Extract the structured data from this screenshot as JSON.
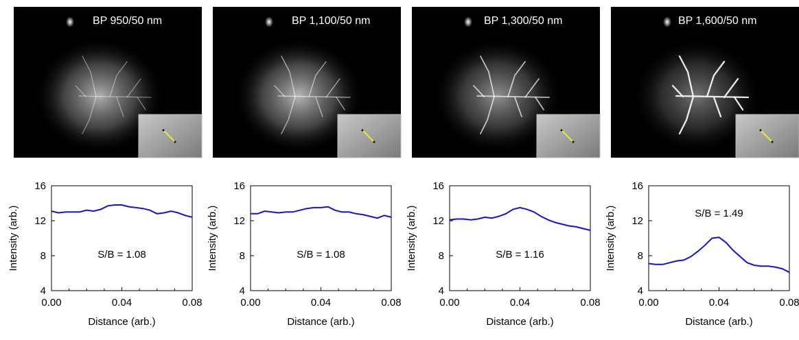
{
  "panels": [
    {
      "label": "BP 950/50 nm",
      "brightness": 0.85,
      "sharpness": 0.15
    },
    {
      "label": "BP 1,100/50 nm",
      "brightness": 0.88,
      "sharpness": 0.3
    },
    {
      "label": "BP 1,300/50 nm",
      "brightness": 0.7,
      "sharpness": 0.55
    },
    {
      "label": "BP 1,600/50 nm",
      "brightness": 0.55,
      "sharpness": 0.9
    }
  ],
  "chart_data": [
    {
      "type": "line",
      "xlabel": "Distance (arb.)",
      "ylabel": "Intensity (arb.)",
      "xlim": [
        0,
        0.08
      ],
      "ylim": [
        4,
        16
      ],
      "xticks": [
        "0.00",
        "0.04",
        "0.08"
      ],
      "yticks": [
        "4",
        "8",
        "12",
        "16"
      ],
      "annotation": "S/B = 1.08",
      "color": "#1010e0",
      "x": [
        0,
        0.004,
        0.008,
        0.012,
        0.016,
        0.02,
        0.024,
        0.028,
        0.032,
        0.036,
        0.04,
        0.044,
        0.048,
        0.052,
        0.056,
        0.06,
        0.064,
        0.068,
        0.072,
        0.076,
        0.08
      ],
      "y": [
        13.1,
        12.9,
        13.0,
        13.0,
        13.0,
        13.2,
        13.1,
        13.3,
        13.7,
        13.8,
        13.8,
        13.6,
        13.5,
        13.4,
        13.2,
        12.8,
        12.9,
        13.1,
        12.9,
        12.6,
        12.4
      ]
    },
    {
      "type": "line",
      "xlabel": "Distance (arb.)",
      "ylabel": "Intensity (arb.)",
      "xlim": [
        0,
        0.08
      ],
      "ylim": [
        4,
        16
      ],
      "xticks": [
        "0.00",
        "0.04",
        "0.08"
      ],
      "yticks": [
        "4",
        "8",
        "12",
        "16"
      ],
      "annotation": "S/B = 1.08",
      "color": "#1010e0",
      "x": [
        0,
        0.004,
        0.008,
        0.012,
        0.016,
        0.02,
        0.024,
        0.028,
        0.032,
        0.036,
        0.04,
        0.044,
        0.048,
        0.052,
        0.056,
        0.06,
        0.064,
        0.068,
        0.072,
        0.076,
        0.08
      ],
      "y": [
        12.8,
        12.8,
        13.1,
        13.0,
        12.9,
        13.0,
        13.0,
        13.2,
        13.4,
        13.5,
        13.5,
        13.6,
        13.2,
        13.0,
        13.0,
        12.8,
        12.7,
        12.5,
        12.3,
        12.6,
        12.4
      ]
    },
    {
      "type": "line",
      "xlabel": "Distance (arb.)",
      "ylabel": "Intensity (arb.)",
      "xlim": [
        0,
        0.08
      ],
      "ylim": [
        4,
        16
      ],
      "xticks": [
        "0.00",
        "0.04",
        "0.08"
      ],
      "yticks": [
        "4",
        "8",
        "12",
        "16"
      ],
      "annotation": "S/B = 1.16",
      "color": "#1010e0",
      "x": [
        0,
        0.004,
        0.008,
        0.012,
        0.016,
        0.02,
        0.024,
        0.028,
        0.032,
        0.036,
        0.04,
        0.044,
        0.048,
        0.052,
        0.056,
        0.06,
        0.064,
        0.068,
        0.072,
        0.076,
        0.08
      ],
      "y": [
        12.1,
        12.2,
        12.2,
        12.1,
        12.2,
        12.4,
        12.3,
        12.5,
        12.8,
        13.3,
        13.5,
        13.3,
        13.0,
        12.5,
        12.1,
        11.8,
        11.6,
        11.4,
        11.3,
        11.1,
        10.9
      ]
    },
    {
      "type": "line",
      "xlabel": "Distance (arb.)",
      "ylabel": "Intensity (arb.)",
      "xlim": [
        0,
        0.08
      ],
      "ylim": [
        4,
        16
      ],
      "xticks": [
        "0.00",
        "0.04",
        "0.08"
      ],
      "yticks": [
        "4",
        "8",
        "12",
        "16"
      ],
      "annotation": "S/B = 1.49",
      "color": "#1010e0",
      "x": [
        0,
        0.004,
        0.008,
        0.012,
        0.016,
        0.02,
        0.024,
        0.028,
        0.032,
        0.036,
        0.04,
        0.044,
        0.048,
        0.052,
        0.056,
        0.06,
        0.064,
        0.068,
        0.072,
        0.076,
        0.08
      ],
      "y": [
        7.1,
        7.0,
        7.0,
        7.2,
        7.4,
        7.5,
        7.9,
        8.5,
        9.2,
        10.0,
        10.1,
        9.5,
        8.6,
        7.9,
        7.2,
        6.9,
        6.8,
        6.8,
        6.7,
        6.5,
        6.1
      ]
    }
  ]
}
